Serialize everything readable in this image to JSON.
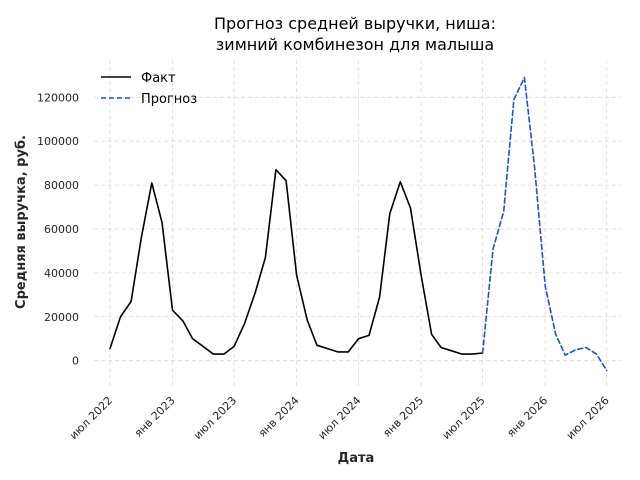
{
  "chart_data": {
    "type": "line",
    "title_lines": [
      "Прогноз средней выручки, ниша:",
      "зимний комбинезон для малыша"
    ],
    "xlabel": "Дата",
    "ylabel": "Средняя выручка, руб.",
    "x_ticks": [
      {
        "label": "июл 2022",
        "date": "2022-07-01"
      },
      {
        "label": "янв 2023",
        "date": "2023-01-01"
      },
      {
        "label": "июл 2023",
        "date": "2023-07-01"
      },
      {
        "label": "янв 2024",
        "date": "2024-01-01"
      },
      {
        "label": "июл 2024",
        "date": "2024-07-01"
      },
      {
        "label": "янв 2025",
        "date": "2025-01-01"
      },
      {
        "label": "июл 2025",
        "date": "2025-07-01"
      },
      {
        "label": "янв 2026",
        "date": "2026-01-01"
      },
      {
        "label": "июл 2026",
        "date": "2026-07-01"
      }
    ],
    "y_ticks": [
      "0",
      "20000",
      "40000",
      "60000",
      "80000",
      "100000",
      "120000"
    ],
    "xlim": [
      "2022-05-15",
      "2026-08-15"
    ],
    "ylim": [
      -12000,
      137000
    ],
    "grid": true,
    "legend_position": "top-left",
    "series": [
      {
        "name": "Факт",
        "style": "solid",
        "color": "#000000",
        "points": [
          [
            "2022-07-01",
            5500
          ],
          [
            "2022-08-01",
            20000
          ],
          [
            "2022-09-01",
            27000
          ],
          [
            "2022-10-01",
            56000
          ],
          [
            "2022-11-01",
            81000
          ],
          [
            "2022-12-01",
            63000
          ],
          [
            "2023-01-01",
            23000
          ],
          [
            "2023-02-01",
            18000
          ],
          [
            "2023-03-01",
            10000
          ],
          [
            "2023-04-01",
            6500
          ],
          [
            "2023-05-01",
            3000
          ],
          [
            "2023-06-01",
            3000
          ],
          [
            "2023-07-01",
            6500
          ],
          [
            "2023-08-01",
            17000
          ],
          [
            "2023-09-01",
            31000
          ],
          [
            "2023-10-01",
            47000
          ],
          [
            "2023-11-01",
            87000
          ],
          [
            "2023-12-01",
            82000
          ],
          [
            "2024-01-01",
            39000
          ],
          [
            "2024-02-01",
            18500
          ],
          [
            "2024-03-01",
            7000
          ],
          [
            "2024-04-01",
            5500
          ],
          [
            "2024-05-01",
            4000
          ],
          [
            "2024-06-01",
            4000
          ],
          [
            "2024-07-01",
            10000
          ],
          [
            "2024-08-01",
            11500
          ],
          [
            "2024-09-01",
            29000
          ],
          [
            "2024-10-01",
            67000
          ],
          [
            "2024-11-01",
            81500
          ],
          [
            "2024-12-01",
            69500
          ],
          [
            "2025-01-01",
            39000
          ],
          [
            "2025-02-01",
            12000
          ],
          [
            "2025-03-01",
            6000
          ],
          [
            "2025-04-01",
            4500
          ],
          [
            "2025-05-01",
            3000
          ],
          [
            "2025-06-01",
            3000
          ],
          [
            "2025-07-01",
            3500
          ]
        ]
      },
      {
        "name": "Прогноз",
        "style": "dashed",
        "color": "#1f4fc9",
        "points": [
          [
            "2025-07-01",
            3500
          ],
          [
            "2025-08-01",
            51000
          ],
          [
            "2025-09-01",
            68000
          ],
          [
            "2025-10-01",
            119000
          ],
          [
            "2025-11-01",
            129000
          ],
          [
            "2025-12-01",
            88000
          ],
          [
            "2026-01-01",
            34000
          ],
          [
            "2026-02-01",
            12000
          ],
          [
            "2026-03-01",
            2500
          ],
          [
            "2026-04-01",
            5000
          ],
          [
            "2026-05-01",
            6000
          ],
          [
            "2026-06-01",
            3000
          ],
          [
            "2026-07-01",
            -4500
          ]
        ]
      }
    ]
  }
}
